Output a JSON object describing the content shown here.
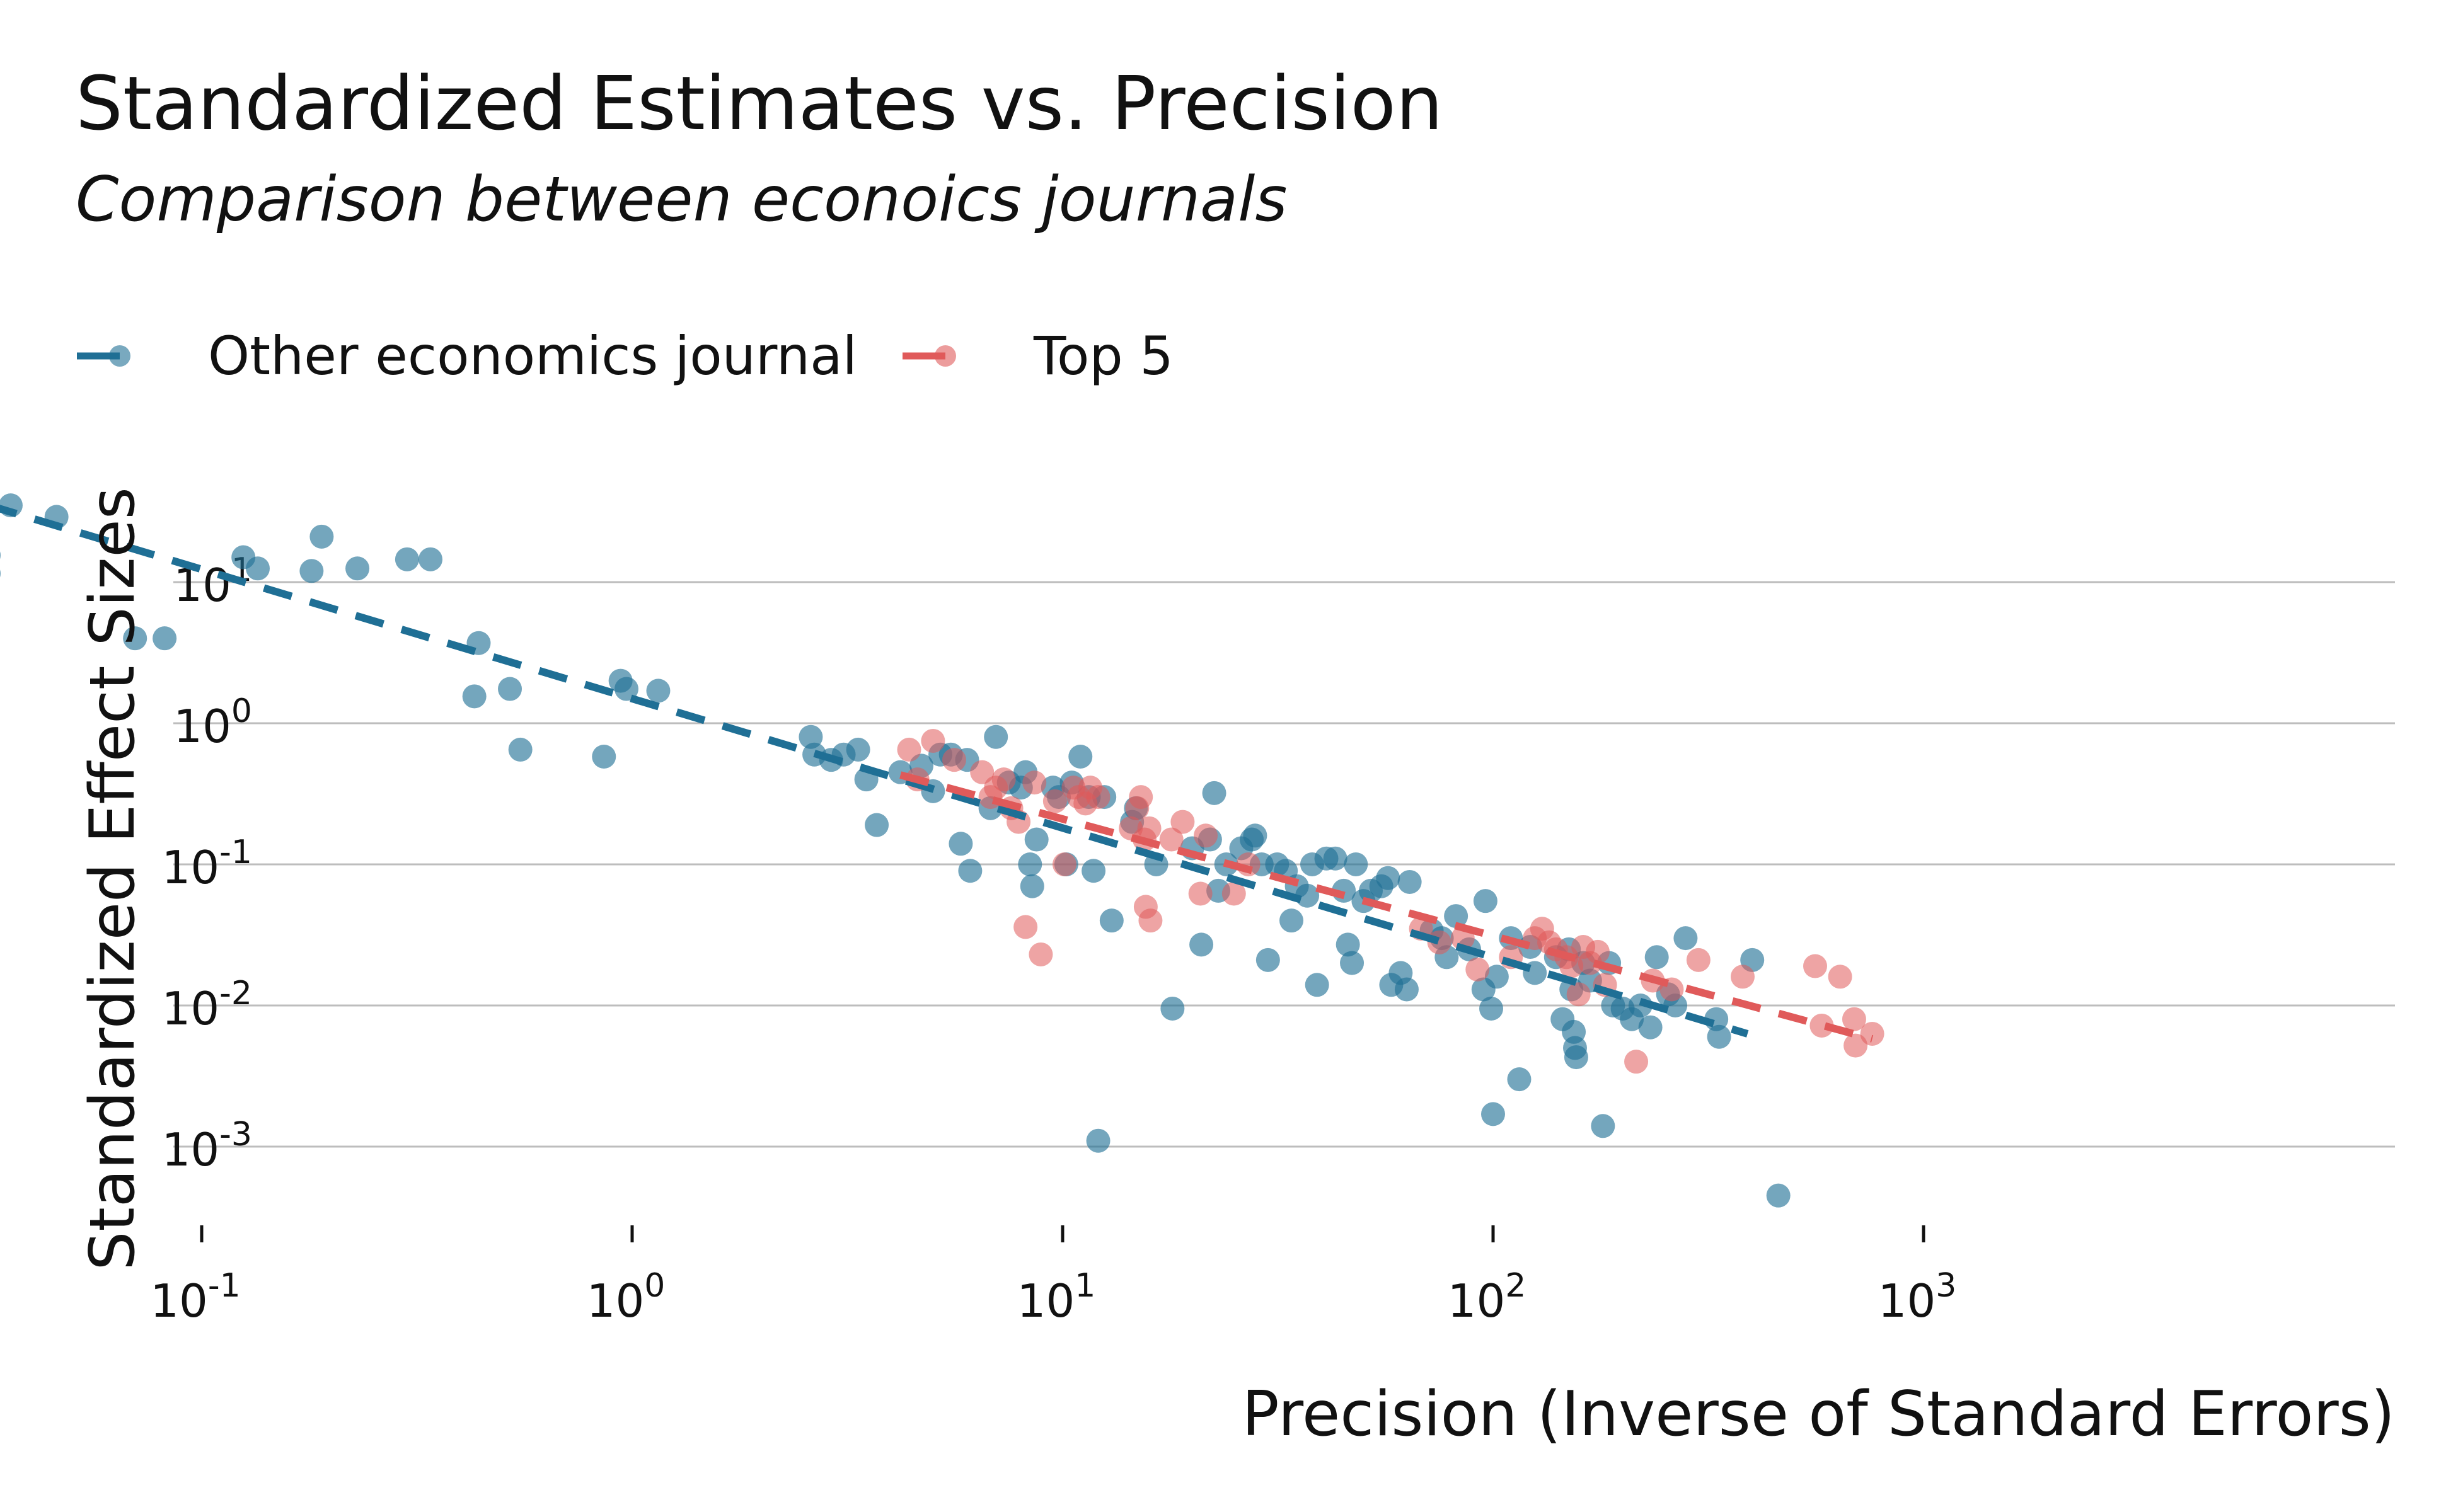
{
  "chart_data": {
    "type": "scatter",
    "title": "Standardized Estimates vs. Precision",
    "subtitle": "Comparison between econoics journals",
    "xlabel": "Precision (Inverse of Standard Errors)",
    "ylabel": "Standardized Effect Sizes",
    "x_scale": "log",
    "y_scale": "log",
    "xlim": [
      0.02,
      1100
    ],
    "ylim": [
      0.0002,
      120
    ],
    "x_ticks": [
      {
        "value": 0.1,
        "base": "10",
        "exp": "-1"
      },
      {
        "value": 1,
        "base": "10",
        "exp": "0"
      },
      {
        "value": 10,
        "base": "10",
        "exp": "1"
      },
      {
        "value": 100,
        "base": "10",
        "exp": "2"
      },
      {
        "value": 1000,
        "base": "10",
        "exp": "3"
      }
    ],
    "y_ticks": [
      {
        "value": 0.001,
        "base": "10",
        "exp": "-3"
      },
      {
        "value": 0.01,
        "base": "10",
        "exp": "-2"
      },
      {
        "value": 0.1,
        "base": "10",
        "exp": "-1"
      },
      {
        "value": 1,
        "base": "10",
        "exp": "0"
      },
      {
        "value": 10,
        "base": "10",
        "exp": "1"
      }
    ],
    "grid": "horizontal",
    "legend_position": "top-left",
    "series": [
      {
        "name": "Other economics journal",
        "color": "#1f6f95",
        "points": [
          [
            0.032,
            15.5
          ],
          [
            0.032,
            11.5
          ],
          [
            0.036,
            35
          ],
          [
            0.046,
            29
          ],
          [
            0.07,
            4.0
          ],
          [
            0.082,
            4.0
          ],
          [
            0.125,
            15
          ],
          [
            0.135,
            12.5
          ],
          [
            0.18,
            12
          ],
          [
            0.19,
            21
          ],
          [
            0.23,
            12.5
          ],
          [
            0.3,
            14.5
          ],
          [
            0.34,
            14.5
          ],
          [
            0.43,
            1.55
          ],
          [
            0.44,
            3.7
          ],
          [
            0.52,
            1.75
          ],
          [
            0.55,
            0.65
          ],
          [
            0.86,
            0.58
          ],
          [
            0.94,
            2.0
          ],
          [
            0.97,
            1.75
          ],
          [
            1.15,
            1.7
          ],
          [
            2.6,
            0.8
          ],
          [
            2.65,
            0.6
          ],
          [
            2.9,
            0.55
          ],
          [
            3.1,
            0.6
          ],
          [
            3.35,
            0.65
          ],
          [
            3.5,
            0.4
          ],
          [
            3.7,
            0.19
          ],
          [
            4.2,
            0.45
          ],
          [
            4.7,
            0.5
          ],
          [
            5.0,
            0.33
          ],
          [
            5.2,
            0.6
          ],
          [
            5.5,
            0.6
          ],
          [
            5.8,
            0.14
          ],
          [
            6.1,
            0.09
          ],
          [
            6.0,
            0.55
          ],
          [
            6.8,
            0.25
          ],
          [
            7.0,
            0.8
          ],
          [
            7.5,
            0.38
          ],
          [
            8.0,
            0.35
          ],
          [
            8.2,
            0.45
          ],
          [
            8.4,
            0.1
          ],
          [
            8.5,
            0.07
          ],
          [
            8.7,
            0.15
          ],
          [
            9.5,
            0.35
          ],
          [
            9.8,
            0.3
          ],
          [
            10.2,
            0.1
          ],
          [
            10.5,
            0.38
          ],
          [
            11.0,
            0.58
          ],
          [
            11.5,
            0.3
          ],
          [
            11.8,
            0.09
          ],
          [
            12.1,
            0.0011
          ],
          [
            12.5,
            0.3
          ],
          [
            13.0,
            0.04
          ],
          [
            14.5,
            0.2
          ],
          [
            14.8,
            0.25
          ],
          [
            16.5,
            0.1
          ],
          [
            18.0,
            0.0095
          ],
          [
            20.0,
            0.13
          ],
          [
            21.0,
            0.027
          ],
          [
            22.0,
            0.15
          ],
          [
            22.5,
            0.32
          ],
          [
            23.0,
            0.065
          ],
          [
            24.0,
            0.1
          ],
          [
            26.0,
            0.13
          ],
          [
            27.5,
            0.15
          ],
          [
            28.0,
            0.16
          ],
          [
            29.0,
            0.1
          ],
          [
            30.0,
            0.021
          ],
          [
            31.5,
            0.1
          ],
          [
            33.0,
            0.09
          ],
          [
            34.0,
            0.04
          ],
          [
            35.0,
            0.07
          ],
          [
            37.0,
            0.06
          ],
          [
            38.0,
            0.1
          ],
          [
            39.0,
            0.014
          ],
          [
            41.0,
            0.11
          ],
          [
            43.0,
            0.11
          ],
          [
            45.0,
            0.065
          ],
          [
            46.0,
            0.027
          ],
          [
            47.0,
            0.02
          ],
          [
            48.0,
            0.1
          ],
          [
            50.0,
            0.055
          ],
          [
            52.0,
            0.065
          ],
          [
            55.0,
            0.07
          ],
          [
            57.0,
            0.08
          ],
          [
            58.0,
            0.014
          ],
          [
            61.0,
            0.017
          ],
          [
            63.0,
            0.013
          ],
          [
            64.0,
            0.075
          ],
          [
            72.0,
            0.034
          ],
          [
            76.0,
            0.03
          ],
          [
            78.0,
            0.022
          ],
          [
            82.0,
            0.043
          ],
          [
            88.0,
            0.025
          ],
          [
            95.0,
            0.013
          ],
          [
            96.0,
            0.055
          ],
          [
            99.0,
            0.0095
          ],
          [
            100.0,
            0.0017
          ],
          [
            102.0,
            0.016
          ],
          [
            110.0,
            0.03
          ],
          [
            115.0,
            0.003
          ],
          [
            122.0,
            0.026
          ],
          [
            125.0,
            0.017
          ],
          [
            140.0,
            0.022
          ],
          [
            145.0,
            0.008
          ],
          [
            150.0,
            0.025
          ],
          [
            152.0,
            0.013
          ],
          [
            154.0,
            0.0065
          ],
          [
            155.0,
            0.005
          ],
          [
            156.0,
            0.0043
          ],
          [
            162.0,
            0.02
          ],
          [
            168.0,
            0.015
          ],
          [
            180.0,
            0.0014
          ],
          [
            186.0,
            0.02
          ],
          [
            190.0,
            0.01
          ],
          [
            200.0,
            0.0095
          ],
          [
            210.0,
            0.008
          ],
          [
            220.0,
            0.01
          ],
          [
            232.0,
            0.007
          ],
          [
            240.0,
            0.022
          ],
          [
            255.0,
            0.012
          ],
          [
            265.0,
            0.01
          ],
          [
            280.0,
            0.03
          ],
          [
            330.0,
            0.008
          ],
          [
            335.0,
            0.006
          ],
          [
            400.0,
            0.021
          ],
          [
            460.0,
            0.00045
          ]
        ],
        "fit": [
          [
            0.032,
            35
          ],
          [
            390,
            0.0063
          ]
        ]
      },
      {
        "name": "Top 5",
        "color": "#e05a5a",
        "points": [
          [
            4.4,
            0.65
          ],
          [
            4.6,
            0.4
          ],
          [
            5.0,
            0.75
          ],
          [
            5.6,
            0.55
          ],
          [
            6.5,
            0.45
          ],
          [
            6.8,
            0.3
          ],
          [
            7.0,
            0.35
          ],
          [
            7.3,
            0.4
          ],
          [
            7.6,
            0.25
          ],
          [
            7.9,
            0.2
          ],
          [
            8.2,
            0.036
          ],
          [
            8.6,
            0.38
          ],
          [
            8.9,
            0.023
          ],
          [
            9.6,
            0.28
          ],
          [
            10.1,
            0.1
          ],
          [
            10.6,
            0.35
          ],
          [
            10.9,
            0.3
          ],
          [
            11.3,
            0.27
          ],
          [
            11.6,
            0.35
          ],
          [
            12.1,
            0.3
          ],
          [
            14.4,
            0.18
          ],
          [
            14.9,
            0.25
          ],
          [
            15.2,
            0.3
          ],
          [
            15.5,
            0.15
          ],
          [
            15.9,
            0.18
          ],
          [
            15.6,
            0.05
          ],
          [
            16.0,
            0.04
          ],
          [
            17.9,
            0.15
          ],
          [
            19.0,
            0.2
          ],
          [
            20.9,
            0.062
          ],
          [
            21.5,
            0.16
          ],
          [
            25.0,
            0.062
          ],
          [
            27.0,
            0.1
          ],
          [
            68.0,
            0.035
          ],
          [
            75.0,
            0.028
          ],
          [
            85.0,
            0.03
          ],
          [
            92.0,
            0.018
          ],
          [
            110.0,
            0.022
          ],
          [
            125.0,
            0.03
          ],
          [
            130.0,
            0.035
          ],
          [
            135.0,
            0.028
          ],
          [
            140.0,
            0.025
          ],
          [
            148.0,
            0.022
          ],
          [
            152.0,
            0.019
          ],
          [
            158.0,
            0.012
          ],
          [
            162.0,
            0.026
          ],
          [
            168.0,
            0.02
          ],
          [
            175.0,
            0.024
          ],
          [
            182.0,
            0.014
          ],
          [
            215.0,
            0.004
          ],
          [
            235.0,
            0.015
          ],
          [
            260.0,
            0.013
          ],
          [
            300.0,
            0.021
          ],
          [
            380.0,
            0.016
          ],
          [
            560.0,
            0.019
          ],
          [
            580.0,
            0.0072
          ],
          [
            640.0,
            0.016
          ],
          [
            690.0,
            0.008
          ],
          [
            695.0,
            0.0052
          ],
          [
            760.0,
            0.0063
          ]
        ],
        "fit": [
          [
            4.2,
            0.43
          ],
          [
            760,
            0.0058
          ]
        ]
      }
    ]
  }
}
